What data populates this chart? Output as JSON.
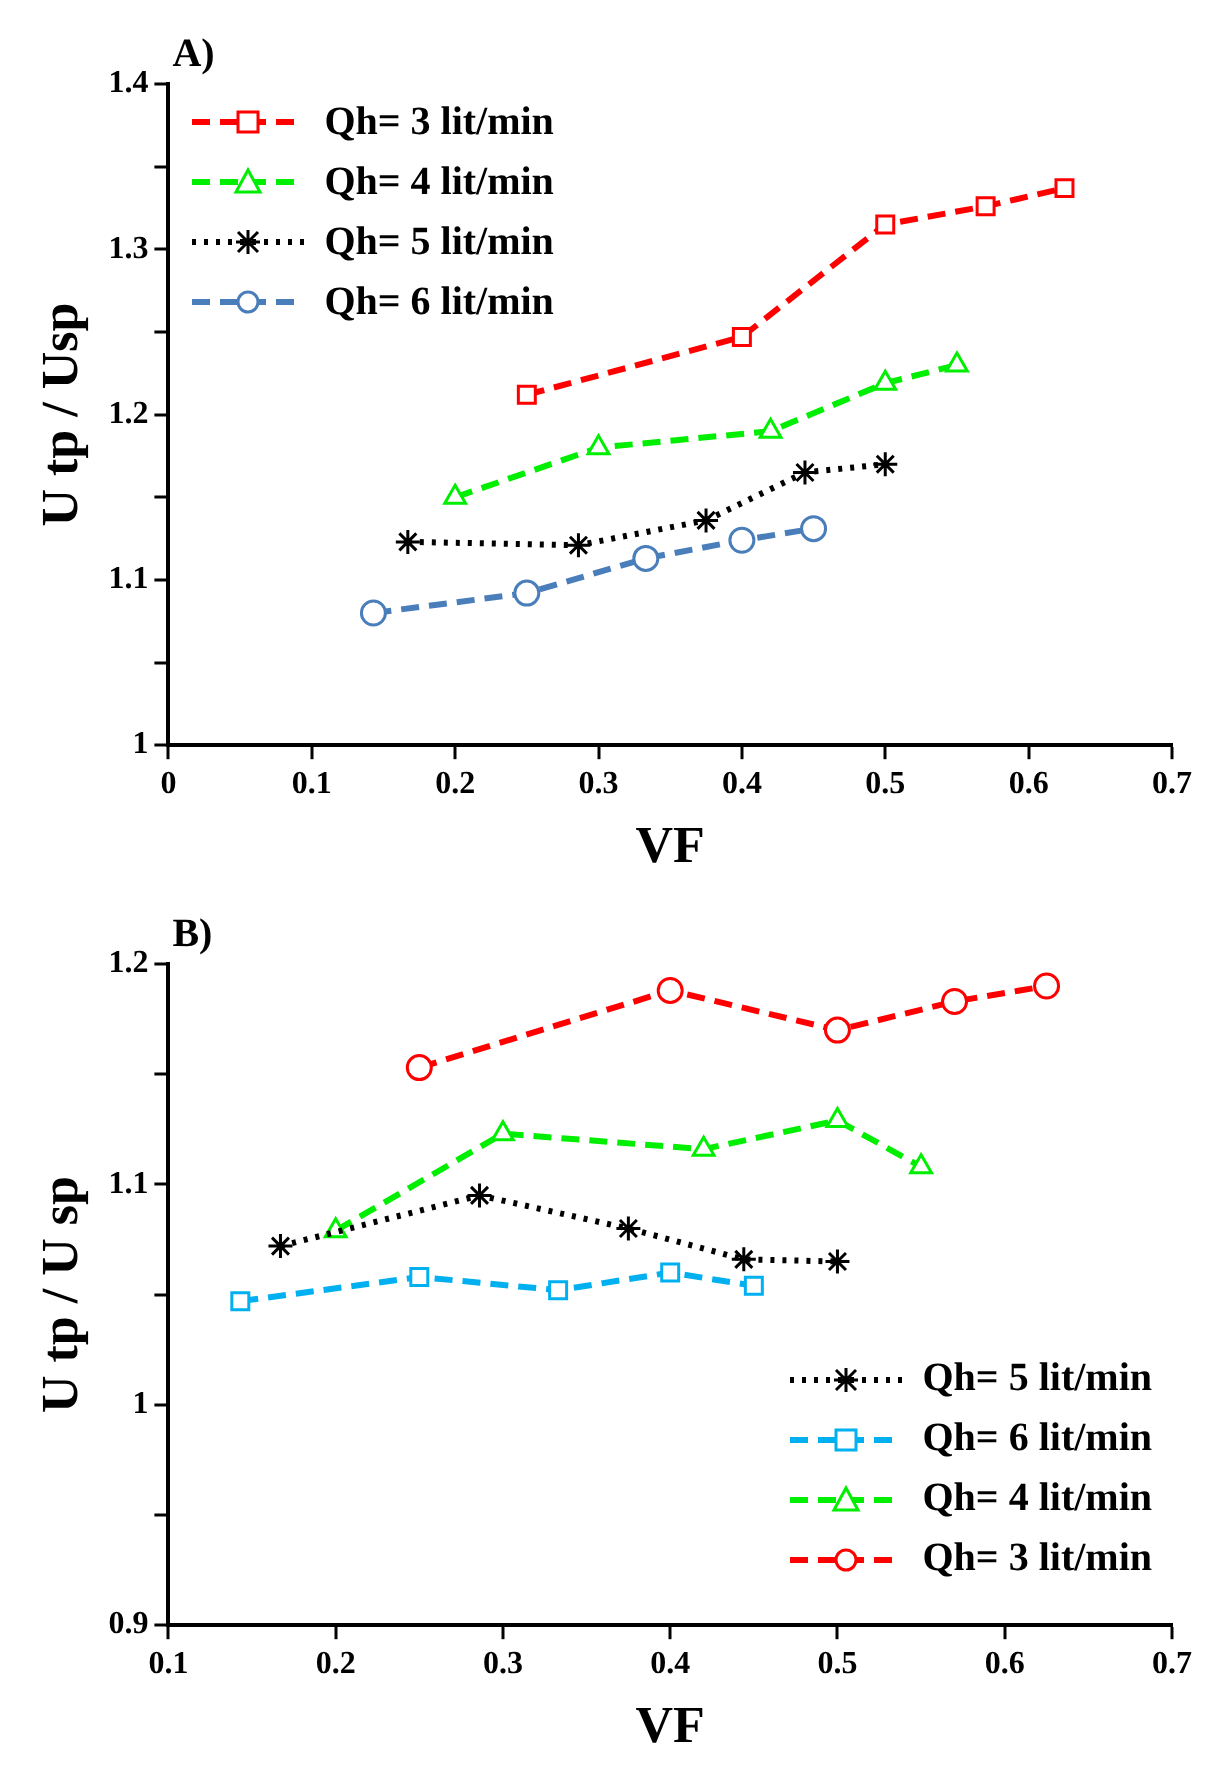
{
  "chart_data": [
    {
      "type": "line",
      "annotations": [
        "A)"
      ],
      "xlabel": "VF",
      "ylabel": "U tp / Usp",
      "xlim": [
        0,
        0.7
      ],
      "xticks": [
        0,
        0.1,
        0.2,
        0.3,
        0.4,
        0.5,
        0.6,
        0.7
      ],
      "ylim": [
        1,
        1.4
      ],
      "yticks": [
        1,
        {
          "value": 1.05,
          "label": null
        },
        1.1,
        {
          "value": 1.15,
          "label": null
        },
        1.2,
        {
          "value": 1.25,
          "label": null
        },
        1.3,
        {
          "value": 1.35,
          "label": null
        },
        1.4
      ],
      "grid": false,
      "legend": "top left",
      "series": [
        {
          "name": "Qh= 3 lit/min",
          "color": "#ff0000",
          "marker": "square",
          "line_style": "dashed",
          "x": [
            0.25,
            0.4,
            0.5,
            0.57,
            0.625
          ],
          "values": [
            1.212,
            1.247,
            1.315,
            1.326,
            1.337
          ]
        },
        {
          "name": "Qh= 4 lit/min",
          "color": "#00ee00",
          "marker": "triangle",
          "line_style": "dashed",
          "x": [
            0.2,
            0.3,
            0.42,
            0.5,
            0.55
          ],
          "values": [
            1.15,
            1.18,
            1.19,
            1.219,
            1.23
          ]
        },
        {
          "name": "Qh= 5 lit/min",
          "color": "#000000",
          "marker": "cross",
          "line_style": "dotted",
          "x": [
            0.167,
            0.286,
            0.375,
            0.444,
            0.5
          ],
          "values": [
            1.123,
            1.121,
            1.136,
            1.165,
            1.17
          ]
        },
        {
          "name": "Qh= 6 lit/min",
          "color": "#4a7ebb",
          "marker": "circle",
          "line_style": "dashed",
          "x": [
            0.143,
            0.25,
            0.333,
            0.4,
            0.45
          ],
          "values": [
            1.08,
            1.092,
            1.113,
            1.124,
            1.131
          ]
        }
      ]
    },
    {
      "type": "line",
      "annotations": [
        "B)"
      ],
      "xlabel": "VF",
      "ylabel": "U tp / U sp",
      "xlim": [
        0.1,
        0.7
      ],
      "xticks": [
        0.1,
        0.2,
        0.3,
        0.4,
        0.5,
        0.6,
        0.7
      ],
      "ylim": [
        0.9,
        1.2
      ],
      "yticks": [
        0.9,
        {
          "value": 0.95,
          "label": null
        },
        1,
        {
          "value": 1.05,
          "label": null
        },
        1.1,
        {
          "value": 1.15,
          "label": null
        },
        1.2
      ],
      "grid": false,
      "legend": "bottom right",
      "series": [
        {
          "name": "Qh= 5 lit/min",
          "color": "#000000",
          "marker": "cross",
          "line_style": "dotted",
          "x": [
            0.167,
            0.286,
            0.375,
            0.444,
            0.5
          ],
          "values": [
            1.072,
            1.095,
            1.08,
            1.066,
            1.065
          ]
        },
        {
          "name": "Qh= 6 lit/min",
          "color": "#00b0f0",
          "marker": "square",
          "line_style": "dashed",
          "x": [
            0.143,
            0.25,
            0.333,
            0.4,
            0.45
          ],
          "values": [
            1.047,
            1.058,
            1.052,
            1.06,
            1.054
          ]
        },
        {
          "name": "Qh= 4 lit/min",
          "color": "#00ee00",
          "marker": "triangle",
          "line_style": "dashed",
          "x": [
            0.2,
            0.3,
            0.42,
            0.5,
            0.55
          ],
          "values": [
            1.079,
            1.123,
            1.116,
            1.129,
            1.108
          ]
        },
        {
          "name": "Qh= 3 lit/min",
          "color": "#ff0000",
          "marker": "circle",
          "line_style": "dashed",
          "x": [
            0.25,
            0.4,
            0.5,
            0.57,
            0.625
          ],
          "values": [
            1.153,
            1.188,
            1.17,
            1.183,
            1.19
          ]
        }
      ]
    }
  ]
}
